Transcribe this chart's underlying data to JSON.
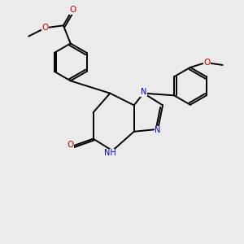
{
  "bg_color": "#ebebeb",
  "bond_color": "#000000",
  "bond_width": 1.4,
  "N_color": "#0000cc",
  "O_color": "#cc0000",
  "font_size": 7.0,
  "fig_width": 3.0,
  "fig_height": 3.0,
  "dpi": 100,
  "xlim": [
    0,
    10
  ],
  "ylim": [
    0,
    10
  ]
}
